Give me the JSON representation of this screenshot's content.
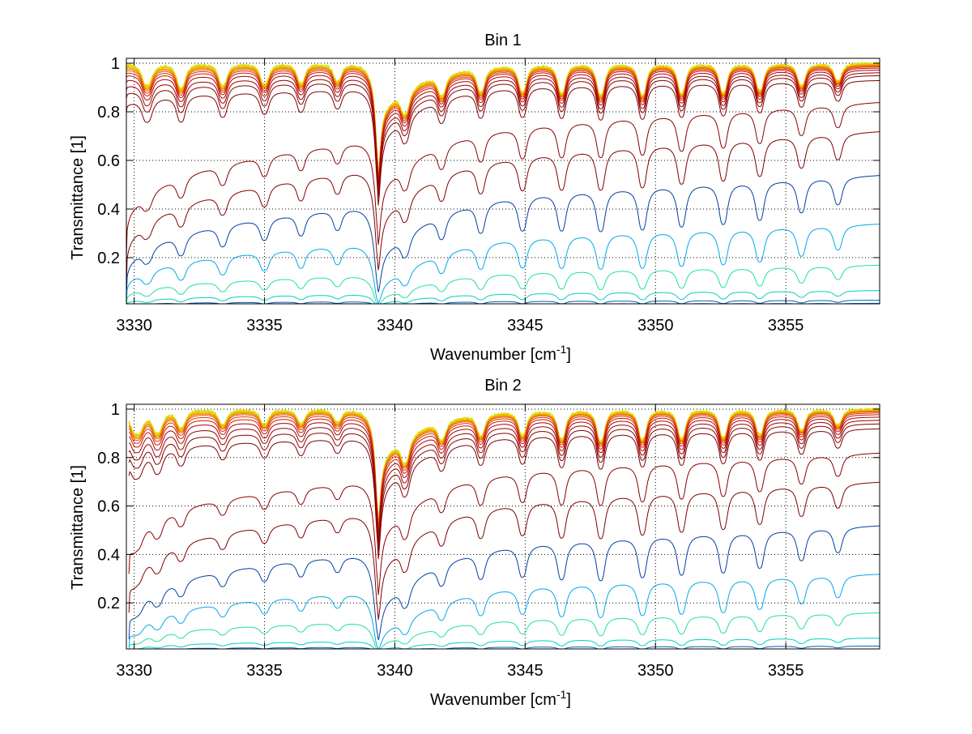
{
  "chart_data": [
    {
      "type": "line",
      "title": "Bin 1",
      "xlabel": "Wavenumber [cm",
      "xlabel_sup": "-1",
      "xlabel_end": "]",
      "ylabel": "Transmittance [1]",
      "xlim": [
        3329.7,
        3358.6
      ],
      "ylim": [
        0.01,
        1.02
      ],
      "xticks": [
        3330,
        3335,
        3340,
        3345,
        3350,
        3355
      ],
      "xtick_labels": [
        "3330",
        "3335",
        "3340",
        "3345",
        "3350",
        "3355"
      ],
      "yticks": [
        0.2,
        0.4,
        0.6,
        0.8,
        1
      ],
      "ytick_labels": [
        "0.2",
        "0.4",
        "0.6",
        "0.8",
        "1"
      ],
      "grid": true,
      "x_start": 3329.7,
      "x_end": 3358.6,
      "curve_count": 22,
      "colormap": "jet",
      "levels_left": [
        0.2,
        0.083,
        0.03,
        0.012,
        0.004,
        0.001
      ],
      "levels_right": [
        0.84,
        0.72,
        0.54,
        0.34,
        0.17,
        0.065,
        0.025,
        0.012,
        0.004,
        0.001
      ],
      "top_curves": [
        1.0,
        1.0,
        0.999,
        0.998,
        0.997,
        0.995,
        0.993,
        0.99,
        0.986,
        0.981,
        0.973,
        0.962,
        0.95,
        0.93
      ],
      "series_colors": [
        "#7f0000",
        "#8a0000",
        "#9a0000",
        "#b00000",
        "#c81400",
        "#d83400",
        "#e25a00",
        "#e98000",
        "#f0a000",
        "#f5bb00",
        "#f8d000",
        "#f0e000",
        "#c8f000",
        "#8cf040",
        "#30d8a0",
        "#00c0e0",
        "#0090e0",
        "#0060c0",
        "#00d0c0",
        "#20e0a0",
        "#00a8e8",
        "#0040a0"
      ],
      "lines": [
        {
          "x": 3330.5,
          "strength": 0.45,
          "width": 0.16,
          "shape": "doublet"
        },
        {
          "x": 3331.8,
          "strength": 0.5,
          "width": 0.14,
          "shape": "doublet"
        },
        {
          "x": 3333.4,
          "strength": 0.45,
          "width": 0.14,
          "shape": "doublet"
        },
        {
          "x": 3335.0,
          "strength": 0.42,
          "width": 0.14,
          "shape": "doublet"
        },
        {
          "x": 3336.4,
          "strength": 0.4,
          "width": 0.13,
          "shape": "doublet"
        },
        {
          "x": 3337.8,
          "strength": 0.35,
          "width": 0.13,
          "shape": "doublet"
        },
        {
          "x": 3339.35,
          "strength": 1.6,
          "width": 0.3,
          "shape": "qbranch"
        },
        {
          "x": 3340.4,
          "strength": 0.55,
          "width": 0.14,
          "shape": "doublet"
        },
        {
          "x": 3341.8,
          "strength": 0.45,
          "width": 0.13,
          "shape": "doublet"
        },
        {
          "x": 3343.3,
          "strength": 0.5,
          "width": 0.13,
          "shape": "doublet"
        },
        {
          "x": 3344.9,
          "strength": 0.55,
          "width": 0.13,
          "shape": "doublet"
        },
        {
          "x": 3346.4,
          "strength": 0.6,
          "width": 0.13,
          "shape": "doublet"
        },
        {
          "x": 3347.9,
          "strength": 0.65,
          "width": 0.13,
          "shape": "doublet"
        },
        {
          "x": 3349.5,
          "strength": 0.65,
          "width": 0.13,
          "shape": "doublet"
        },
        {
          "x": 3351.0,
          "strength": 0.62,
          "width": 0.13,
          "shape": "doublet"
        },
        {
          "x": 3352.6,
          "strength": 0.6,
          "width": 0.13,
          "shape": "doublet"
        },
        {
          "x": 3354.0,
          "strength": 0.55,
          "width": 0.13,
          "shape": "doublet"
        },
        {
          "x": 3355.6,
          "strength": 0.45,
          "width": 0.13,
          "shape": "doublet"
        },
        {
          "x": 3357.0,
          "strength": 0.35,
          "width": 0.13,
          "shape": "doublet"
        }
      ]
    },
    {
      "type": "line",
      "title": "Bin 2",
      "xlabel": "Wavenumber [cm",
      "xlabel_sup": "-1",
      "xlabel_end": "]",
      "ylabel": "Transmittance [1]",
      "xlim": [
        3329.7,
        3358.6
      ],
      "ylim": [
        0.01,
        1.02
      ],
      "xticks": [
        3330,
        3335,
        3340,
        3345,
        3350,
        3355
      ],
      "xtick_labels": [
        "3330",
        "3335",
        "3340",
        "3345",
        "3350",
        "3355"
      ],
      "yticks": [
        0.2,
        0.4,
        0.6,
        0.8,
        1
      ],
      "ytick_labels": [
        "0.2",
        "0.4",
        "0.6",
        "0.8",
        "1"
      ],
      "grid": true,
      "x_start": 3329.8,
      "x_end": 3358.6,
      "curve_count": 22,
      "colormap": "jet",
      "levels_left": [
        0.35,
        0.18,
        0.06,
        0.022,
        0.008,
        0.002
      ],
      "levels_right": [
        0.82,
        0.7,
        0.52,
        0.32,
        0.16,
        0.055,
        0.022,
        0.01,
        0.004,
        0.001
      ],
      "top_curves": [
        1.0,
        1.0,
        0.999,
        0.998,
        0.997,
        0.995,
        0.993,
        0.99,
        0.985,
        0.978,
        0.968,
        0.955,
        0.94,
        0.92
      ],
      "series_colors": [
        "#7f0000",
        "#8a0000",
        "#9a0000",
        "#b00000",
        "#c81400",
        "#d83400",
        "#e25a00",
        "#e98000",
        "#f0a000",
        "#f5bb00",
        "#f8d000",
        "#f0e000",
        "#c8f000",
        "#8cf040",
        "#30d8a0",
        "#00c0e0",
        "#0090e0",
        "#0060c0",
        "#00d0c0",
        "#20e0a0",
        "#00a8e8",
        "#0040a0"
      ],
      "lines": [
        {
          "x": 3330.1,
          "strength": 0.5,
          "width": 0.2,
          "shape": "doublet"
        },
        {
          "x": 3330.9,
          "strength": 0.45,
          "width": 0.16,
          "shape": "doublet"
        },
        {
          "x": 3331.8,
          "strength": 0.35,
          "width": 0.14,
          "shape": "doublet"
        },
        {
          "x": 3333.4,
          "strength": 0.3,
          "width": 0.14,
          "shape": "doublet"
        },
        {
          "x": 3335.0,
          "strength": 0.3,
          "width": 0.14,
          "shape": "doublet"
        },
        {
          "x": 3336.4,
          "strength": 0.28,
          "width": 0.13,
          "shape": "doublet"
        },
        {
          "x": 3337.8,
          "strength": 0.25,
          "width": 0.13,
          "shape": "doublet"
        },
        {
          "x": 3339.35,
          "strength": 1.7,
          "width": 0.3,
          "shape": "qbranch"
        },
        {
          "x": 3340.4,
          "strength": 0.6,
          "width": 0.14,
          "shape": "doublet"
        },
        {
          "x": 3341.8,
          "strength": 0.4,
          "width": 0.13,
          "shape": "doublet"
        },
        {
          "x": 3343.3,
          "strength": 0.45,
          "width": 0.13,
          "shape": "doublet"
        },
        {
          "x": 3344.9,
          "strength": 0.5,
          "width": 0.13,
          "shape": "doublet"
        },
        {
          "x": 3346.4,
          "strength": 0.6,
          "width": 0.13,
          "shape": "doublet"
        },
        {
          "x": 3347.9,
          "strength": 0.65,
          "width": 0.13,
          "shape": "doublet"
        },
        {
          "x": 3349.5,
          "strength": 0.62,
          "width": 0.13,
          "shape": "doublet"
        },
        {
          "x": 3351.0,
          "strength": 0.6,
          "width": 0.13,
          "shape": "doublet"
        },
        {
          "x": 3352.6,
          "strength": 0.58,
          "width": 0.13,
          "shape": "doublet"
        },
        {
          "x": 3354.0,
          "strength": 0.52,
          "width": 0.13,
          "shape": "doublet"
        },
        {
          "x": 3355.6,
          "strength": 0.42,
          "width": 0.13,
          "shape": "doublet"
        },
        {
          "x": 3357.0,
          "strength": 0.32,
          "width": 0.13,
          "shape": "doublet"
        }
      ]
    }
  ]
}
